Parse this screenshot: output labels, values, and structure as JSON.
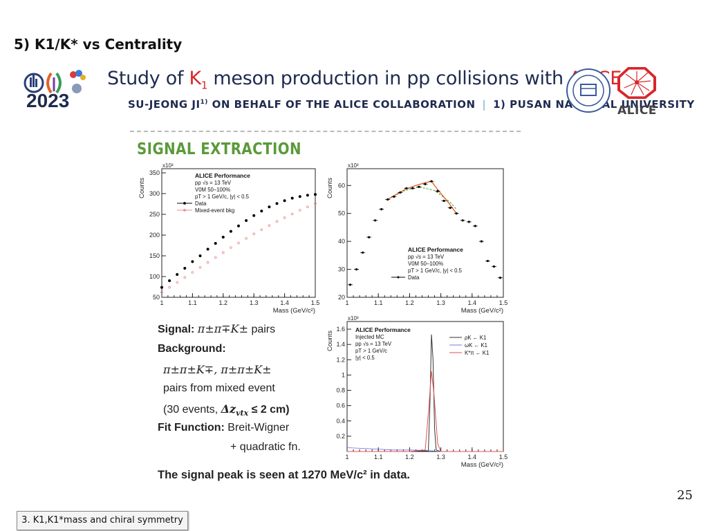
{
  "slide_title": "5) K1/K* vs Centrality",
  "logo": {
    "year": "2023"
  },
  "banner": {
    "title_pre": "Study of ",
    "title_k": "K",
    "title_sub": "1",
    "title_mid": " meson production in pp collisions with ",
    "title_alice": "ALICE",
    "author": "SU-JEONG JI",
    "author_sup": "1)",
    "collab": " ON BEHALF OF THE ALICE COLLABORATION",
    "sep": "|",
    "affil": "1) PUSAN NATIONAL UNIVERSITY",
    "right_logo_text": "ALICE"
  },
  "section_title": "SIGNAL EXTRACTION",
  "text": {
    "signal_label": "Signal:",
    "signal_formula": "π±π∓K±",
    "signal_suffix": " pairs",
    "background_label": "Background:",
    "bkg_formula": "π±π±K∓,  π±π±K±",
    "bkg_line2": "pairs from mixed event",
    "bkg_line3_pre": "(30 events, ",
    "bkg_line3_math": "Δz",
    "bkg_line3_sub": "vtx",
    "bkg_line3_post": " ≤ 2 cm)",
    "fit_label": "Fit Function:",
    "fit_value": " Breit-Wigner",
    "fit_line2": "+ quadratic fn.",
    "conclusion": "The signal peak is seen at 1270 MeV/c² in data."
  },
  "page_number": "25",
  "footer": "3. K1,K1*mass and chiral symmetry",
  "chart_data": [
    {
      "type": "scatter",
      "ylabel": "Counts",
      "xlabel": "Mass (GeV/c²)",
      "exponent": "x10³",
      "xlim": [
        1.0,
        1.5
      ],
      "ylim": [
        50,
        360
      ],
      "xticks": [
        "1",
        "1.1",
        "1.2",
        "1.3",
        "1.4",
        "1.5"
      ],
      "yticks": [
        "50",
        "100",
        "150",
        "200",
        "250",
        "300",
        "350"
      ],
      "legend": [
        "ALICE Performance",
        "pp √s = 13 TeV",
        "V0M 50–100%",
        "pT > 1 GeV/c, |y| < 0.5"
      ],
      "series": [
        {
          "name": "Data",
          "color": "#000000",
          "x": [
            1.0,
            1.025,
            1.05,
            1.075,
            1.1,
            1.125,
            1.15,
            1.175,
            1.2,
            1.225,
            1.25,
            1.275,
            1.3,
            1.325,
            1.35,
            1.375,
            1.4,
            1.425,
            1.45,
            1.475,
            1.5
          ],
          "values": [
            74,
            90,
            105,
            120,
            136,
            150,
            166,
            180,
            195,
            209,
            222,
            235,
            247,
            258,
            268,
            276,
            283,
            289,
            293,
            296,
            298
          ]
        },
        {
          "name": "Mixed-event bkg",
          "color": "#e88a8a",
          "x": [
            1.0,
            1.025,
            1.05,
            1.075,
            1.1,
            1.125,
            1.15,
            1.175,
            1.2,
            1.225,
            1.25,
            1.275,
            1.3,
            1.325,
            1.35,
            1.375,
            1.4,
            1.425,
            1.45,
            1.475,
            1.5
          ],
          "values": [
            62,
            74,
            86,
            98,
            110,
            122,
            134,
            146,
            158,
            170,
            181,
            192,
            203,
            213,
            223,
            233,
            242,
            251,
            260,
            268,
            276
          ]
        }
      ]
    },
    {
      "type": "scatter",
      "ylabel": "Counts",
      "xlabel": "Mass (GeV/c²)",
      "exponent": "x10³",
      "xlim": [
        1.0,
        1.5
      ],
      "ylim": [
        20,
        66
      ],
      "xticks": [
        "1",
        "1.1",
        "1.2",
        "1.3",
        "1.4",
        "1.5"
      ],
      "yticks": [
        "20",
        "30",
        "40",
        "50",
        "60"
      ],
      "legend": [
        "ALICE Performance",
        "pp √s = 13 TeV",
        "V0M 50–100%",
        "pT > 1 GeV/c, |y| < 0.5"
      ],
      "series": [
        {
          "name": "Data",
          "color": "#000000",
          "x": [
            1.01,
            1.03,
            1.05,
            1.07,
            1.09,
            1.11,
            1.13,
            1.15,
            1.17,
            1.19,
            1.21,
            1.23,
            1.25,
            1.27,
            1.29,
            1.31,
            1.33,
            1.35,
            1.37,
            1.39,
            1.41,
            1.43,
            1.45,
            1.47,
            1.49
          ],
          "values": [
            24.5,
            30,
            36,
            41.5,
            47.5,
            51.5,
            55,
            56,
            57.5,
            59,
            59,
            59.5,
            60.5,
            61.5,
            58,
            54.5,
            52,
            50,
            47.5,
            47,
            45.5,
            40,
            33,
            31,
            27
          ]
        }
      ],
      "fit": {
        "color": "#e05a1a",
        "x": [
          1.13,
          1.16,
          1.19,
          1.22,
          1.25,
          1.27,
          1.29,
          1.32,
          1.35
        ],
        "values": [
          55,
          57,
          58.8,
          60,
          61,
          61.5,
          58.5,
          54.5,
          50
        ]
      },
      "background_fit": {
        "color": "#3aa33a",
        "x": [
          1.13,
          1.18,
          1.23,
          1.28,
          1.33,
          1.35
        ],
        "values": [
          55,
          58,
          59.5,
          58.2,
          54,
          51.5
        ]
      }
    },
    {
      "type": "line",
      "ylabel": "Counts",
      "xlabel": "Mass (GeV/c²)",
      "exponent": "x10³",
      "xlim": [
        1.0,
        1.5
      ],
      "ylim": [
        0,
        1.7
      ],
      "xticks": [
        "1",
        "1.1",
        "1.2",
        "1.3",
        "1.4",
        "1.5"
      ],
      "yticks": [
        "0.2",
        "0.4",
        "0.6",
        "0.8",
        "1",
        "1.2",
        "1.4",
        "1.6"
      ],
      "legend": [
        "ALICE Performance",
        "Injected MC",
        "pp √s = 13 TeV",
        "pT > 1 GeV/c",
        "|y| < 0.5"
      ],
      "series": [
        {
          "name": "ρK ← K1",
          "color": "#333333",
          "x": [
            1.0,
            1.2,
            1.26,
            1.265,
            1.27,
            1.275,
            1.28,
            1.285,
            1.3,
            1.5
          ],
          "values": [
            0,
            0,
            0.01,
            0.6,
            1.53,
            1.2,
            0.3,
            0.02,
            0,
            0
          ]
        },
        {
          "name": "ωK ← K1",
          "color": "#7777dd",
          "x": [
            1.0,
            1.05,
            1.1,
            1.15,
            1.2,
            1.25,
            1.3,
            1.5
          ],
          "values": [
            0.05,
            0.04,
            0.03,
            0.02,
            0.02,
            0.015,
            0.0,
            0.0
          ]
        },
        {
          "name": "K*π ← K1",
          "color": "#e05050",
          "x": [
            1.0,
            1.2,
            1.25,
            1.262,
            1.27,
            1.278,
            1.29,
            1.3,
            1.5
          ],
          "values": [
            0,
            0.0,
            0.02,
            0.6,
            1.05,
            0.75,
            0.1,
            0.0,
            0
          ]
        }
      ]
    }
  ]
}
